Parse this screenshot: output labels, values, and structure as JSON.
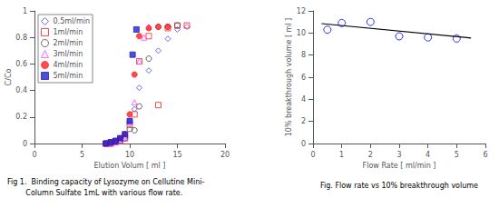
{
  "chart_data": [
    {
      "type": "scatter",
      "xlabel": "Elution Volum [ ml ]",
      "ylabel": "C/Co",
      "xlim": [
        0,
        20
      ],
      "ylim": [
        0,
        1
      ],
      "xticks": [
        0,
        5,
        10,
        15,
        20
      ],
      "yticks": [
        0,
        0.2,
        0.4,
        0.6,
        0.8,
        1
      ],
      "grid": false,
      "legend": "upper left",
      "annotations": [
        "Fig 1.  Binding capacity of Lysozyme on Cellutine Mini-",
        "        Column Sulfate 1mL with various flow rate."
      ],
      "series": [
        {
          "name": "0.5ml/min",
          "color": "#4444ff",
          "marker": "open-diamond",
          "x": [
            7.5,
            8.0,
            8.5,
            9.0,
            9.5,
            10.0,
            10.5,
            11.0,
            12.0,
            13.0,
            14.0,
            15.0,
            16.0
          ],
          "values": [
            0.0,
            0.0,
            0.01,
            0.02,
            0.05,
            0.17,
            0.26,
            0.42,
            0.55,
            0.7,
            0.79,
            0.86,
            0.88
          ]
        },
        {
          "name": "1ml/min",
          "color": "#ff2020",
          "marker": "open-square",
          "x": [
            7.5,
            8.0,
            8.5,
            9.0,
            9.5,
            10.0,
            10.5,
            11.0,
            12.0,
            13.0,
            14.0,
            15.0,
            16.0
          ],
          "values": [
            0.0,
            0.0,
            0.01,
            0.02,
            0.04,
            0.14,
            0.22,
            0.62,
            0.81,
            0.29,
            0.87,
            0.89,
            0.89
          ]
        },
        {
          "name": "2ml/min",
          "color": "#404040",
          "marker": "open-circle",
          "x": [
            7.5,
            8.0,
            8.5,
            9.0,
            9.5,
            10.0,
            10.5,
            11.0,
            12.0,
            13.0,
            14.0,
            15.0
          ],
          "values": [
            0.0,
            0.0,
            0.01,
            0.02,
            0.04,
            0.11,
            0.1,
            0.28,
            0.64,
            0.88,
            0.88,
            0.89
          ]
        },
        {
          "name": "3ml/min",
          "color": "#ff44ff",
          "marker": "open-triangle",
          "x": [
            7.5,
            8.0,
            8.5,
            9.0,
            9.5,
            10.0,
            10.5,
            11.0,
            11.5,
            12.0
          ],
          "values": [
            0.0,
            0.0,
            0.01,
            0.02,
            0.04,
            0.16,
            0.31,
            0.62,
            0.8,
            0.88
          ]
        },
        {
          "name": "4ml/min",
          "color": "#ff2020",
          "marker": "circle",
          "x": [
            7.5,
            8.0,
            8.5,
            9.0,
            9.5,
            10.0,
            10.5,
            11.0,
            12.0,
            13.0,
            14.0
          ],
          "values": [
            0.0,
            0.01,
            0.02,
            0.04,
            0.07,
            0.22,
            0.52,
            0.81,
            0.87,
            0.88,
            0.88
          ]
        },
        {
          "name": "5ml/min",
          "color": "#2222cc",
          "marker": "square",
          "x": [
            7.5,
            8.0,
            8.5,
            9.0,
            9.5,
            10.0,
            10.3,
            10.7
          ],
          "values": [
            0.0,
            0.01,
            0.02,
            0.04,
            0.07,
            0.17,
            0.67,
            0.86
          ]
        }
      ]
    },
    {
      "type": "scatter",
      "xlabel": "Flow Rate [ ml/min ]",
      "ylabel": "10% breakthrough volume [ ml ]",
      "xlim": [
        0,
        6
      ],
      "ylim": [
        0,
        12
      ],
      "xticks": [
        0,
        1,
        2,
        3,
        4,
        5,
        6
      ],
      "yticks": [
        0,
        2,
        4,
        6,
        8,
        10,
        12
      ],
      "grid": false,
      "annotations": [
        "Fig. Flow rate vs 10% breakthrough volume"
      ],
      "series": [
        {
          "type": "scatter",
          "color": "#0000ff",
          "marker": "open-circle",
          "x": [
            0.5,
            1.0,
            2.0,
            3.0,
            4.0,
            5.0
          ],
          "values": [
            10.3,
            10.9,
            11.0,
            9.7,
            9.6,
            9.5
          ]
        },
        {
          "type": "line",
          "color": "#000000",
          "line_style": "solid",
          "x": [
            0.3,
            5.5
          ],
          "values": [
            10.85,
            9.55
          ]
        }
      ]
    }
  ]
}
